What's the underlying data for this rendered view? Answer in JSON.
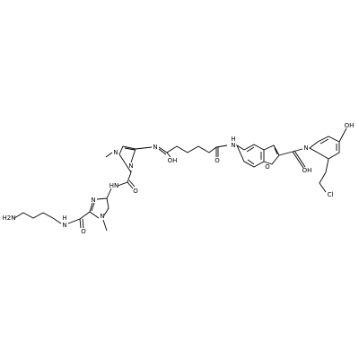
{
  "atoms": [
    "H2N",
    "N",
    "H",
    "O",
    "N",
    "N",
    "HN",
    "O",
    "N",
    "N",
    "N",
    "OH",
    "O",
    "N",
    "H",
    "O",
    "N",
    "OH",
    "OH",
    "Cl"
  ]
}
